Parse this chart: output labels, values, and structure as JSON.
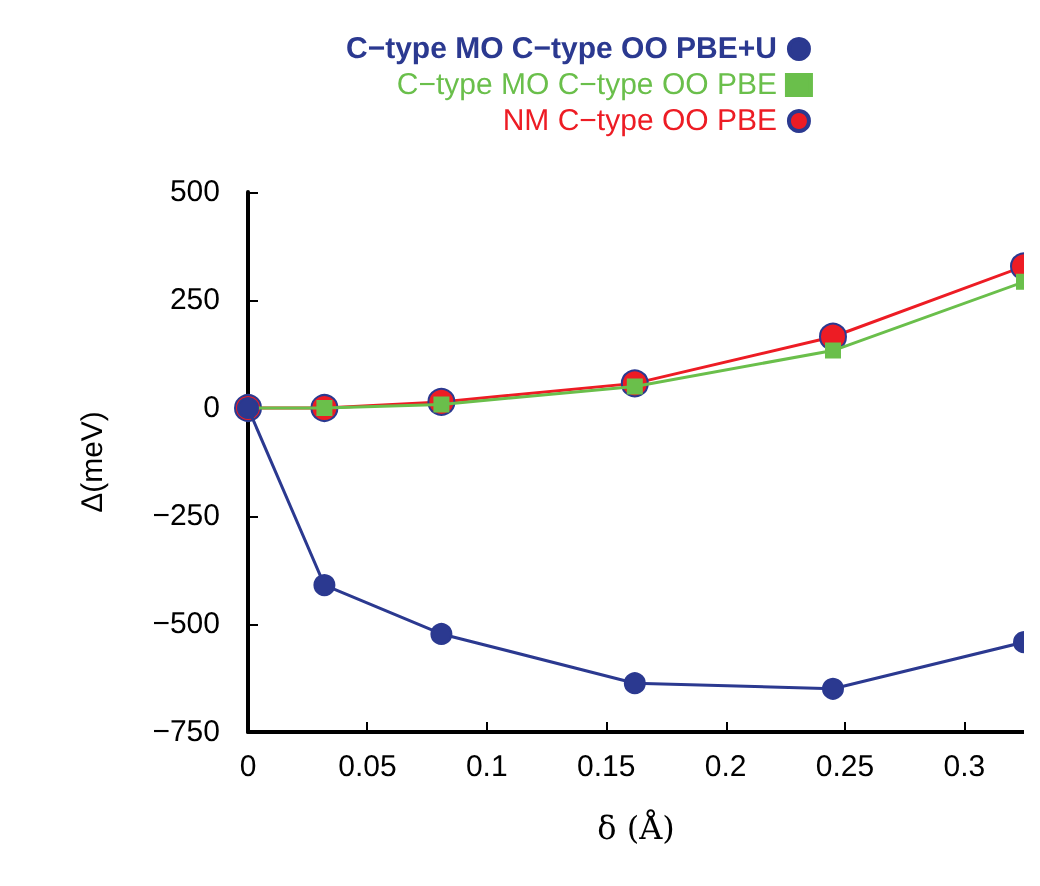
{
  "chart_data": {
    "type": "line",
    "xlabel": "δ (Å)",
    "ylabel": "Δ(meV)",
    "x": [
      0,
      0.032,
      0.081,
      0.162,
      0.245,
      0.325
    ],
    "series": [
      {
        "name": "C−type MO C−type OO PBE+U",
        "color": "#2b3990",
        "marker": "circle",
        "values": [
          0,
          -410,
          -523,
          -637,
          -650,
          -542
        ]
      },
      {
        "name": "C−type MO C−type OO PBE",
        "color": "#6abf4b",
        "marker": "square",
        "values": [
          0,
          0,
          8,
          50,
          133,
          292
        ]
      },
      {
        "name": "NM C−type OO PBE",
        "color": "#ed1c24",
        "marker": "circle",
        "values": [
          0,
          0,
          14,
          57,
          165,
          328
        ]
      }
    ],
    "xlim": [
      0,
      0.325
    ],
    "xticks": [
      0,
      0.05,
      0.1,
      0.15,
      0.2,
      0.25,
      0.3
    ],
    "ylim": [
      -750,
      500
    ],
    "yticks": [
      -750,
      -500,
      -250,
      0,
      250,
      500
    ],
    "grid": false,
    "legend": "top",
    "line_style": "solid"
  }
}
